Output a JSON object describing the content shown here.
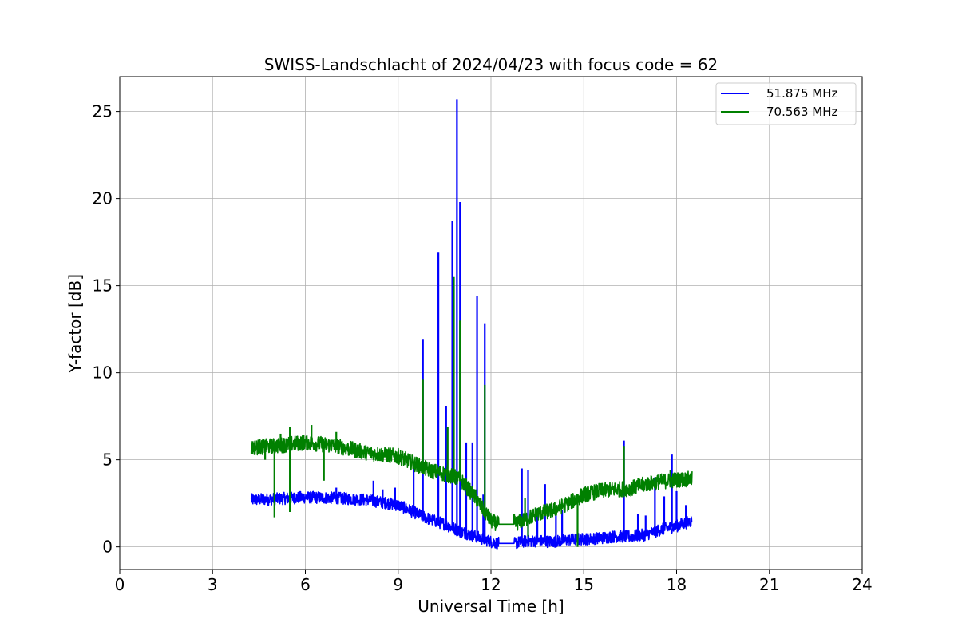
{
  "chart_data": {
    "type": "line",
    "title": "SWISS-Landschlacht of 2024/04/23 with focus code = 62",
    "xlabel": "Universal Time [h]",
    "ylabel": "Y-factor [dB]",
    "xlim": [
      0,
      24
    ],
    "ylim": [
      -1.3,
      27
    ],
    "xticks": [
      0,
      3,
      6,
      9,
      12,
      15,
      18,
      21,
      24
    ],
    "yticks": [
      0,
      5,
      10,
      15,
      20,
      25
    ],
    "grid": true,
    "legend_position": "top-right",
    "series": [
      {
        "name": "51.875 MHz",
        "color": "#0000ff",
        "points": [
          [
            4.25,
            2.7
          ],
          [
            5.0,
            2.75
          ],
          [
            6.0,
            2.85
          ],
          [
            7.0,
            2.8
          ],
          [
            8.0,
            2.7
          ],
          [
            9.0,
            2.4
          ],
          [
            9.5,
            2.0
          ],
          [
            10.0,
            1.6
          ],
          [
            10.5,
            1.3
          ],
          [
            11.0,
            0.9
          ],
          [
            11.5,
            0.6
          ],
          [
            12.0,
            0.3
          ],
          [
            12.25,
            0.2
          ],
          [
            12.75,
            0.2
          ],
          [
            13.0,
            0.3
          ],
          [
            13.5,
            0.35
          ],
          [
            14.0,
            0.3
          ],
          [
            14.5,
            0.4
          ],
          [
            15.0,
            0.45
          ],
          [
            15.5,
            0.5
          ],
          [
            16.0,
            0.6
          ],
          [
            16.5,
            0.6
          ],
          [
            17.0,
            0.7
          ],
          [
            17.5,
            1.0
          ],
          [
            18.0,
            1.2
          ],
          [
            18.5,
            1.5
          ]
        ],
        "spikes": [
          [
            7.0,
            3.4
          ],
          [
            8.2,
            3.8
          ],
          [
            8.5,
            3.3
          ],
          [
            8.9,
            3.4
          ],
          [
            9.5,
            4.6
          ],
          [
            9.8,
            11.9
          ],
          [
            10.3,
            16.9
          ],
          [
            10.55,
            8.1
          ],
          [
            10.75,
            18.7
          ],
          [
            10.9,
            25.7
          ],
          [
            11.0,
            19.8
          ],
          [
            11.2,
            6.0
          ],
          [
            11.4,
            6.0
          ],
          [
            11.55,
            14.4
          ],
          [
            11.75,
            3.0
          ],
          [
            11.8,
            12.8
          ],
          [
            13.0,
            4.5
          ],
          [
            13.2,
            4.4
          ],
          [
            13.5,
            2.2
          ],
          [
            13.75,
            3.6
          ],
          [
            14.1,
            1.8
          ],
          [
            14.3,
            2.1
          ],
          [
            16.3,
            6.1
          ],
          [
            16.75,
            1.9
          ],
          [
            17.0,
            1.8
          ],
          [
            17.3,
            4.0
          ],
          [
            17.6,
            2.9
          ],
          [
            17.85,
            5.3
          ],
          [
            18.0,
            3.2
          ],
          [
            18.3,
            2.4
          ]
        ]
      },
      {
        "name": "70.563 MHz",
        "color": "#008000",
        "points": [
          [
            4.25,
            5.7
          ],
          [
            5.0,
            5.8
          ],
          [
            6.0,
            6.0
          ],
          [
            7.0,
            5.8
          ],
          [
            8.0,
            5.4
          ],
          [
            9.0,
            5.2
          ],
          [
            9.5,
            4.8
          ],
          [
            10.0,
            4.4
          ],
          [
            10.5,
            4.2
          ],
          [
            11.0,
            3.9
          ],
          [
            11.5,
            2.8
          ],
          [
            12.0,
            1.5
          ],
          [
            12.25,
            1.3
          ],
          [
            12.75,
            1.3
          ],
          [
            13.0,
            1.5
          ],
          [
            13.5,
            1.9
          ],
          [
            14.0,
            2.1
          ],
          [
            14.5,
            2.5
          ],
          [
            15.0,
            3.0
          ],
          [
            15.5,
            3.2
          ],
          [
            16.0,
            3.3
          ],
          [
            16.5,
            3.35
          ],
          [
            17.0,
            3.6
          ],
          [
            17.5,
            3.75
          ],
          [
            18.0,
            3.85
          ],
          [
            18.5,
            3.9
          ]
        ],
        "spikes": [
          [
            4.7,
            5.0
          ],
          [
            5.0,
            1.7
          ],
          [
            5.2,
            6.5
          ],
          [
            5.5,
            2.0
          ],
          [
            5.5,
            6.9
          ],
          [
            6.2,
            7.0
          ],
          [
            6.6,
            3.8
          ],
          [
            7.0,
            6.6
          ],
          [
            9.8,
            9.6
          ],
          [
            10.5,
            3.7
          ],
          [
            10.6,
            6.9
          ],
          [
            10.8,
            15.5
          ],
          [
            11.0,
            13.0
          ],
          [
            11.5,
            3.3
          ],
          [
            11.8,
            9.3
          ],
          [
            12.75,
            1.9
          ],
          [
            13.1,
            2.8
          ],
          [
            13.2,
            0.6
          ],
          [
            14.8,
            0.0
          ],
          [
            16.3,
            5.8
          ],
          [
            17.8,
            4.4
          ]
        ]
      }
    ]
  }
}
